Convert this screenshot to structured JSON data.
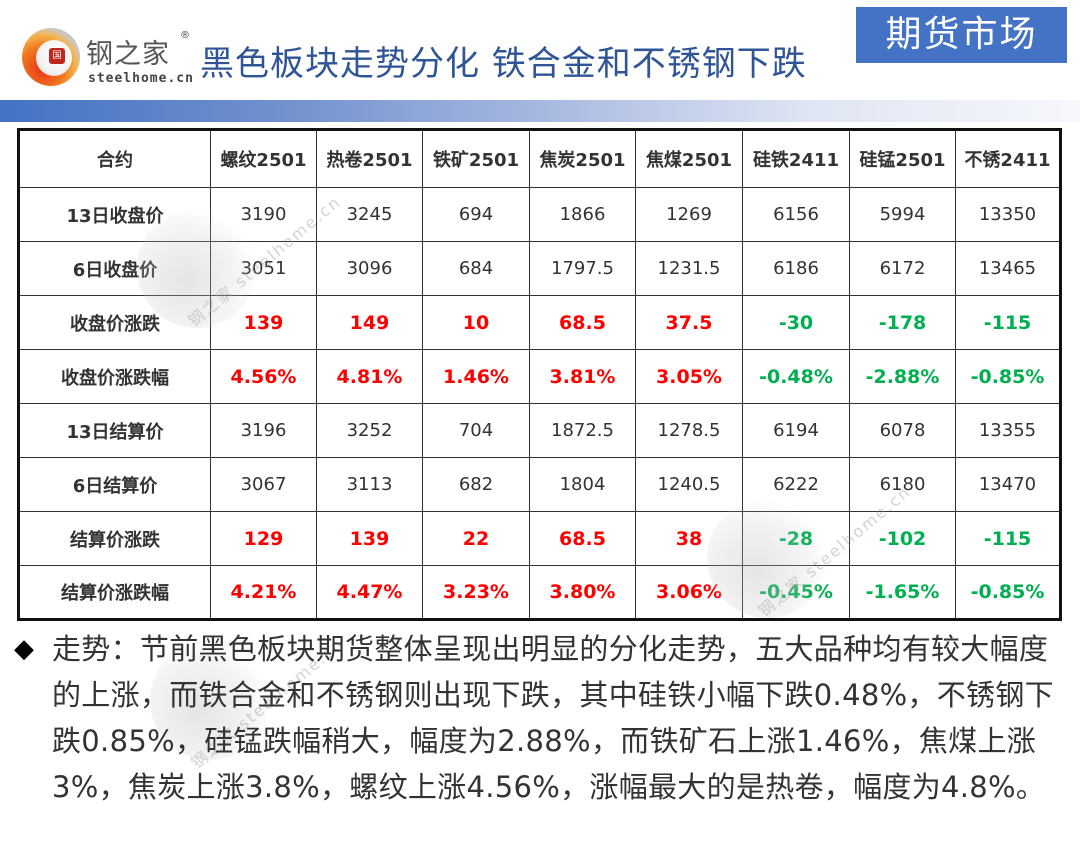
{
  "header": {
    "logo": {
      "cn": "钢之家",
      "en": "steelhome.cn",
      "reg": "®",
      "seal": "国"
    },
    "title": "黑色板块走势分化 铁合金和不锈钢下跌",
    "badge": "期货市场",
    "colors": {
      "title": "#2f5597",
      "badge_bg": "#4472c4",
      "up": "#ff0000",
      "down": "#00b050"
    }
  },
  "table": {
    "columns": [
      "合约",
      "螺纹2501",
      "热卷2501",
      "铁矿2501",
      "焦炭2501",
      "焦煤2501",
      "硅铁2411",
      "硅锰2501",
      "不锈2411"
    ],
    "rows": [
      {
        "label": "13日收盘价",
        "type": "plain",
        "values": [
          "3190",
          "3245",
          "694",
          "1866",
          "1269",
          "6156",
          "5994",
          "13350"
        ]
      },
      {
        "label": "6日收盘价",
        "type": "plain",
        "values": [
          "3051",
          "3096",
          "684",
          "1797.5",
          "1231.5",
          "6186",
          "6172",
          "13465"
        ]
      },
      {
        "label": "收盘价涨跌",
        "type": "change",
        "values": [
          "139",
          "149",
          "10",
          "68.5",
          "37.5",
          "-30",
          "-178",
          "-115"
        ]
      },
      {
        "label": "收盘价涨跌幅",
        "type": "change",
        "values": [
          "4.56%",
          "4.81%",
          "1.46%",
          "3.81%",
          "3.05%",
          "-0.48%",
          "-2.88%",
          "-0.85%"
        ]
      },
      {
        "label": "13日结算价",
        "type": "plain",
        "values": [
          "3196",
          "3252",
          "704",
          "1872.5",
          "1278.5",
          "6194",
          "6078",
          "13355"
        ]
      },
      {
        "label": "6日结算价",
        "type": "plain",
        "values": [
          "3067",
          "3113",
          "682",
          "1804",
          "1240.5",
          "6222",
          "6180",
          "13470"
        ]
      },
      {
        "label": "结算价涨跌",
        "type": "change",
        "values": [
          "129",
          "139",
          "22",
          "68.5",
          "38",
          "-28",
          "-102",
          "-115"
        ]
      },
      {
        "label": "结算价涨跌幅",
        "type": "change",
        "values": [
          "4.21%",
          "4.47%",
          "3.23%",
          "3.80%",
          "3.06%",
          "-0.45%",
          "-1.65%",
          "-0.85%"
        ]
      }
    ]
  },
  "watermark": {
    "text": "钢之家 steelhome.cn"
  },
  "summary": {
    "bullet": "◆",
    "text": "走势：节前黑色板块期货整体呈现出明显的分化走势，五大品种均有较大幅度的上涨，而铁合金和不锈钢则出现下跌，其中硅铁小幅下跌0.48%，不锈钢下跌0.85%，硅锰跌幅稍大，幅度为2.88%，而铁矿石上涨1.46%，焦煤上涨3%，焦炭上涨3.8%，螺纹上涨4.56%，涨幅最大的是热卷，幅度为4.8%。"
  }
}
